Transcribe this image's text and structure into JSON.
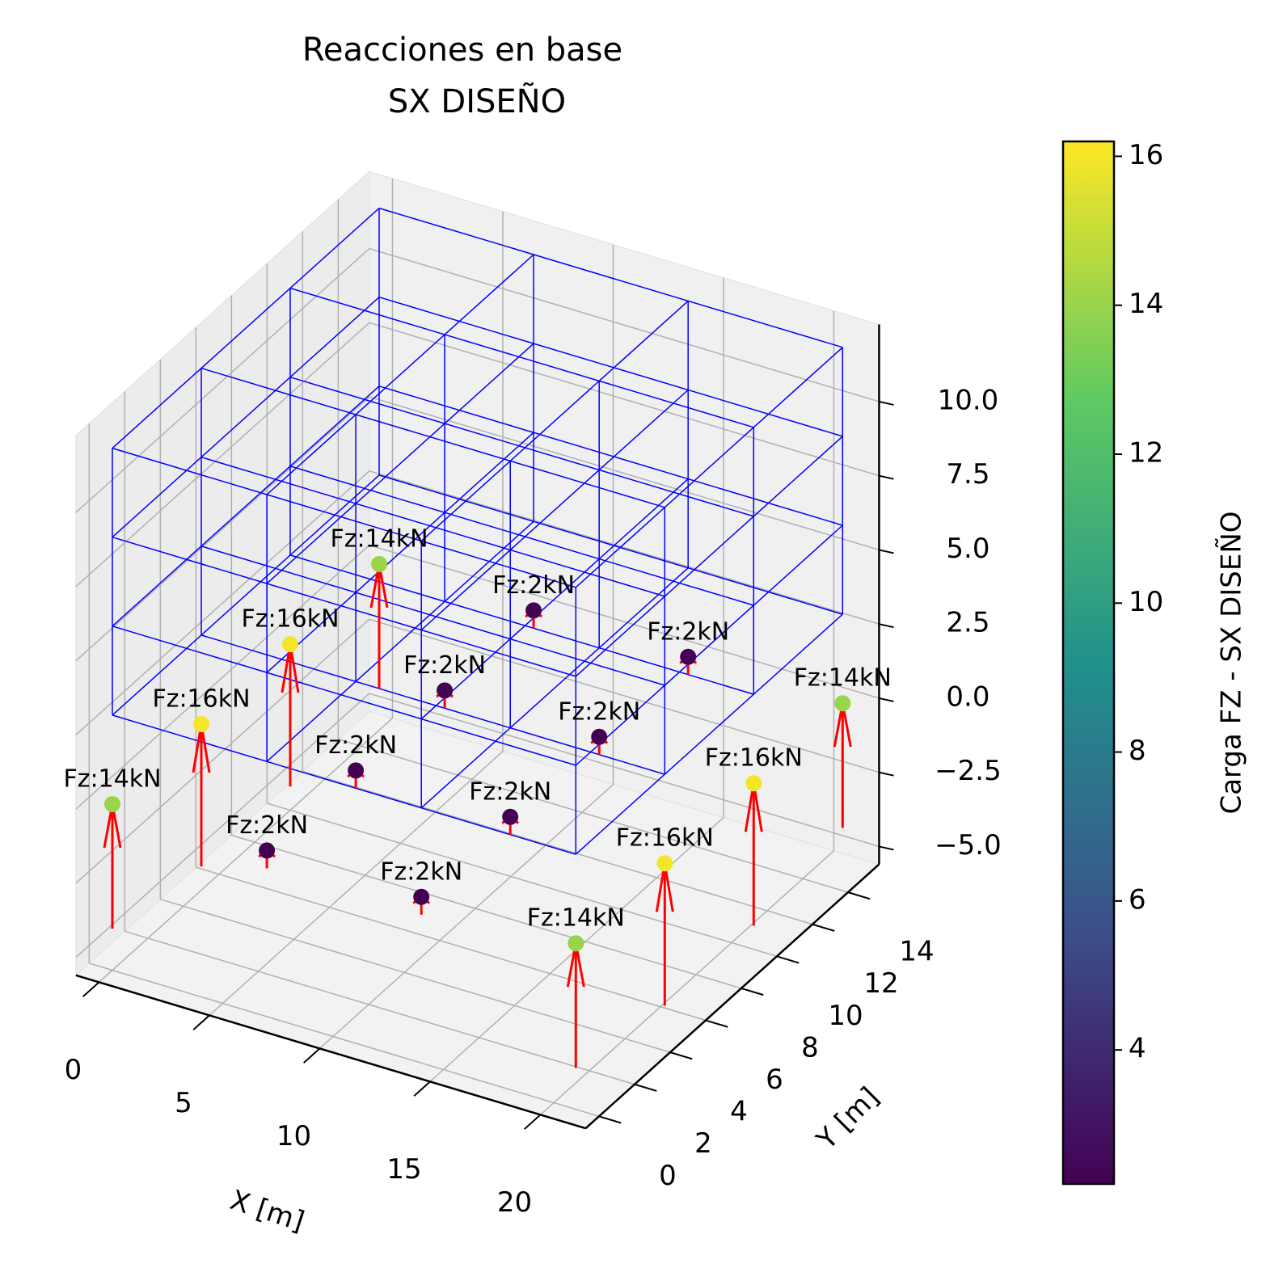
{
  "chart_data": {
    "type": "scatter3d",
    "title_lines": [
      "Reacciones en base",
      "SX DISEÑO"
    ],
    "xlabel": "X [m]",
    "ylabel": "Y [m]",
    "colorbar_label": "Carga FZ - SX DISEÑO",
    "x": [
      0,
      7,
      14,
      21,
      0,
      7,
      14,
      21,
      0,
      7,
      14,
      21,
      0,
      7,
      14,
      21
    ],
    "y": [
      0,
      0,
      0,
      0,
      5,
      5,
      5,
      5,
      10,
      10,
      10,
      10,
      15,
      15,
      15,
      15
    ],
    "z": [
      0,
      0,
      0,
      0,
      0,
      0,
      0,
      0,
      0,
      0,
      0,
      0,
      0,
      0,
      0,
      0
    ],
    "values": [
      14,
      2,
      2,
      14,
      16,
      2,
      2,
      16,
      16,
      2,
      2,
      16,
      14,
      2,
      2,
      14
    ],
    "value_labels": [
      "Fz:14kN",
      "Fz:2kN",
      "Fz:2kN",
      "Fz:14kN",
      "Fz:16kN",
      "Fz:2kN",
      "Fz:2kN",
      "Fz:16kN",
      "Fz:16kN",
      "Fz:2kN",
      "Fz:2kN",
      "Fz:16kN",
      "Fz:14kN",
      "Fz:2kN",
      "Fz:2kN",
      "Fz:14kN"
    ],
    "frame": {
      "x_lines": [
        0,
        7,
        14,
        21
      ],
      "y_lines": [
        0,
        5,
        10,
        15
      ],
      "levels": [
        0,
        3,
        6,
        9,
        12
      ]
    },
    "frame_color": "#0000ff",
    "arrow_color": "#ff0000",
    "colormap": "viridis",
    "xlim": [
      -1.05,
      22.05
    ],
    "ylim": [
      -0.75,
      15.75
    ],
    "zlim": [
      -5.6,
      12.6
    ],
    "xticks": [
      0,
      5,
      10,
      15,
      20
    ],
    "yticks": [
      0,
      2,
      4,
      6,
      8,
      10,
      12,
      14
    ],
    "zticks": [
      {
        "value": -5,
        "label": "−5.0"
      },
      {
        "value": -2.5,
        "label": "−2.5"
      },
      {
        "value": 0,
        "label": "0.0"
      },
      {
        "value": 2.5,
        "label": "2.5"
      },
      {
        "value": 5,
        "label": "5.0"
      },
      {
        "value": 7.5,
        "label": "7.5"
      },
      {
        "value": 10,
        "label": "10.0"
      }
    ],
    "clim": [
      2.2,
      16.2
    ],
    "cticks": [
      4,
      6,
      8,
      10,
      12,
      14,
      16
    ],
    "grid": true
  }
}
